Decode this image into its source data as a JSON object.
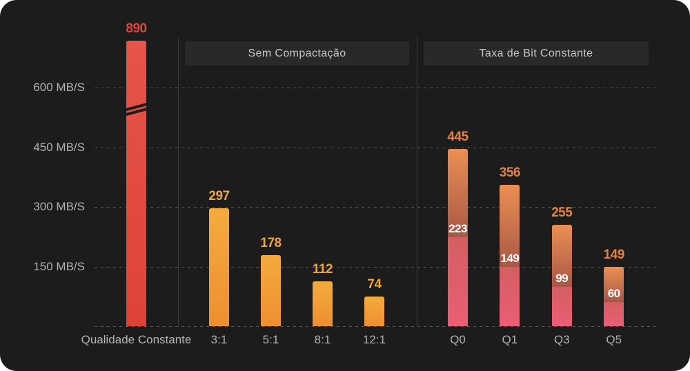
{
  "chart_data": {
    "type": "bar",
    "title": "",
    "unit": "MB/S",
    "ylim": [
      0,
      600
    ],
    "grid": "horizontal dashed lines, dark background, no visible axes lines except dashed baseline",
    "legend_position": "none",
    "axis_break": {
      "present": true,
      "bar": "Qualidade Constante",
      "note": "double slash break mark on bar because 890 exceeds the 600 axis maximum"
    },
    "y_ticks": [
      {
        "value": 600,
        "label": "600 MB/S"
      },
      {
        "value": 450,
        "label": "450 MB/S"
      },
      {
        "value": 300,
        "label": "300 MB/S"
      },
      {
        "value": 150,
        "label": "150 MB/S"
      }
    ],
    "groups": [
      {
        "header": "",
        "style": "red",
        "bars": [
          {
            "label": "Qualidade Constante",
            "value": 890,
            "broken": true
          }
        ]
      },
      {
        "header": "Sem Compactação",
        "style": "orange",
        "bars": [
          {
            "label": "3:1",
            "value": 297
          },
          {
            "label": "5:1",
            "value": 178
          },
          {
            "label": "8:1",
            "value": 112
          },
          {
            "label": "12:1",
            "value": 74
          }
        ]
      },
      {
        "header": "Taxa de Bit Constante",
        "style": "stacked",
        "bars": [
          {
            "label": "Q0",
            "value": 445,
            "inner_value": 223
          },
          {
            "label": "Q1",
            "value": 356,
            "inner_value": 149
          },
          {
            "label": "Q3",
            "value": 255,
            "inner_value": 99
          },
          {
            "label": "Q5",
            "value": 149,
            "inner_value": 60
          }
        ]
      }
    ]
  },
  "colors": {
    "background": "#1c1c1c",
    "grid": "#575757",
    "divider": "#3c3c3c",
    "axis_text": "#b3b2b0",
    "header_box": "#292929",
    "header_text": "#c7c7c5",
    "red_bar": [
      "#e6544a",
      "#dd4437"
    ],
    "red_label": "#e0463a",
    "orange_bar": [
      "#f4ab3d",
      "#ee8f30"
    ],
    "orange_label": "#efa636",
    "stacked_top": [
      "#ec8f52",
      "#a85747"
    ],
    "stacked_bottom": [
      "#d35f61",
      "#eb5e75"
    ],
    "stacked_label": "#e8823e",
    "inner_label": "#ffffff"
  }
}
